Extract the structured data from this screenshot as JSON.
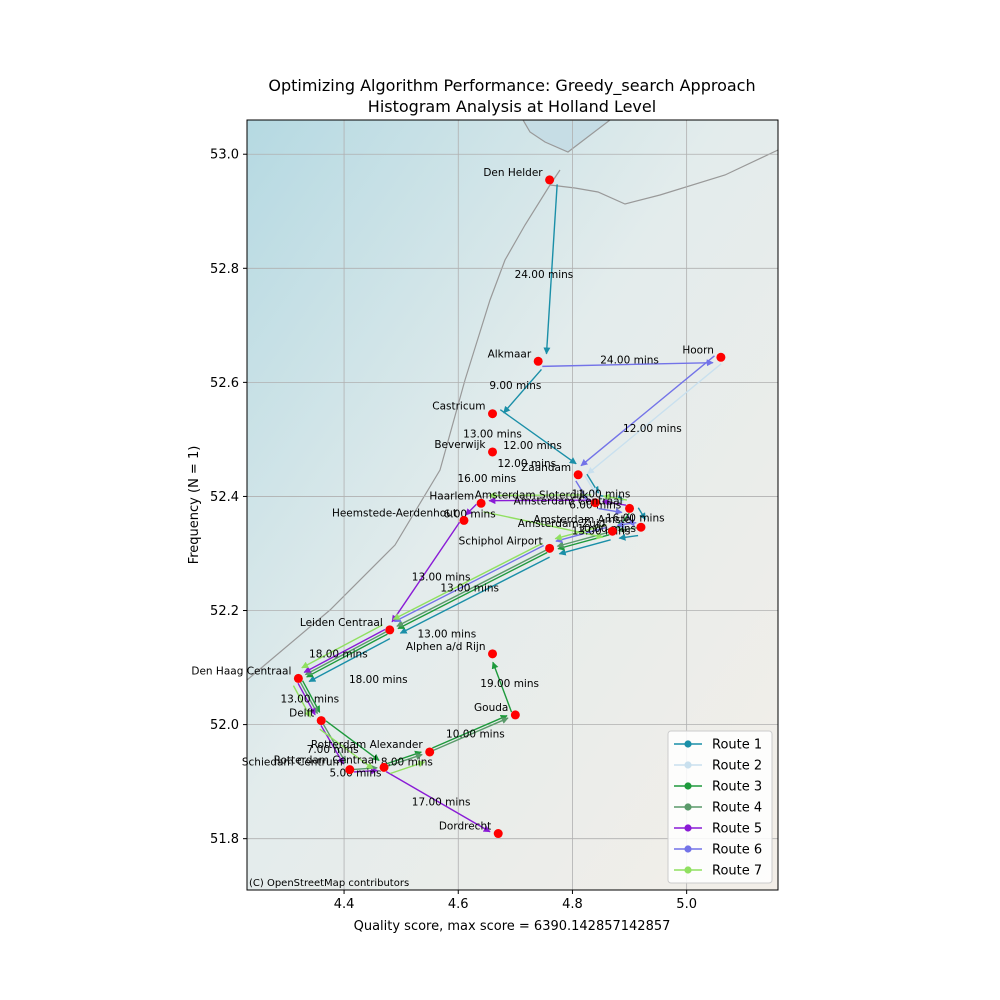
{
  "chart_data": {
    "type": "line",
    "title_line1": "Optimizing Algorithm Performance: Greedy_search Approach",
    "title_line2": "Histogram Analysis at Holland Level",
    "xlabel": "Quality score, max score = 6390.142857142857",
    "ylabel": "Frequency (N = 1)",
    "xlim": [
      4.23,
      5.16
    ],
    "ylim": [
      51.71,
      53.06
    ],
    "xticks": [
      "4.4",
      "4.6",
      "4.8",
      "5.0"
    ],
    "xtick_values": [
      4.4,
      4.6,
      4.8,
      5.0
    ],
    "yticks": [
      "51.8",
      "52.0",
      "52.2",
      "52.4",
      "52.6",
      "52.8",
      "53.0"
    ],
    "ytick_values": [
      51.8,
      52.0,
      52.2,
      52.4,
      52.6,
      52.8,
      53.0
    ],
    "grid": true,
    "legend_position": "lower-right",
    "attribution": "(C) OpenStreetMap contributors",
    "stations": [
      {
        "name": "Den Helder",
        "x": 4.76,
        "y": 52.955
      },
      {
        "name": "Alkmaar",
        "x": 4.74,
        "y": 52.637
      },
      {
        "name": "Hoorn",
        "x": 5.06,
        "y": 52.644
      },
      {
        "name": "Castricum",
        "x": 4.66,
        "y": 52.545
      },
      {
        "name": "Beverwijk",
        "x": 4.66,
        "y": 52.478
      },
      {
        "name": "Zaandam",
        "x": 4.81,
        "y": 52.438
      },
      {
        "name": "Haarlem",
        "x": 4.64,
        "y": 52.388
      },
      {
        "name": "Amsterdam Sloterdijk",
        "x": 4.84,
        "y": 52.389
      },
      {
        "name": "Amsterdam Centraal",
        "x": 4.9,
        "y": 52.379
      },
      {
        "name": "Amsterdam Zuid",
        "x": 4.87,
        "y": 52.339
      },
      {
        "name": "Amsterdam Amstel",
        "x": 4.92,
        "y": 52.346
      },
      {
        "name": "Heemstede-Aerdenhout",
        "x": 4.61,
        "y": 52.358
      },
      {
        "name": "Schiphol Airport",
        "x": 4.76,
        "y": 52.309
      },
      {
        "name": "Leiden Centraal",
        "x": 4.48,
        "y": 52.166
      },
      {
        "name": "Alphen a/d Rijn",
        "x": 4.66,
        "y": 52.124
      },
      {
        "name": "Den Haag Centraal",
        "x": 4.32,
        "y": 52.081
      },
      {
        "name": "Gouda",
        "x": 4.7,
        "y": 52.017
      },
      {
        "name": "Delft",
        "x": 4.36,
        "y": 52.007
      },
      {
        "name": "Rotterdam Alexander",
        "x": 4.55,
        "y": 51.952
      },
      {
        "name": "Rotterdam Centraal",
        "x": 4.47,
        "y": 51.925
      },
      {
        "name": "Schiedam Centrum",
        "x": 4.41,
        "y": 51.921
      },
      {
        "name": "Dordrecht",
        "x": 4.67,
        "y": 51.809
      }
    ],
    "duration_labels": [
      {
        "text": "24.00 mins",
        "x": 4.75,
        "y": 52.79
      },
      {
        "text": "24.00 mins",
        "x": 4.9,
        "y": 52.64
      },
      {
        "text": "9.00 mins",
        "x": 4.7,
        "y": 52.595
      },
      {
        "text": "12.00 mins",
        "x": 4.94,
        "y": 52.52
      },
      {
        "text": "13.00 mins",
        "x": 4.66,
        "y": 52.51
      },
      {
        "text": "12.00 mins",
        "x": 4.73,
        "y": 52.49
      },
      {
        "text": "12.00 mins",
        "x": 4.72,
        "y": 52.459
      },
      {
        "text": "16.00 mins",
        "x": 4.65,
        "y": 52.432
      },
      {
        "text": "11.00 mins",
        "x": 4.85,
        "y": 52.405
      },
      {
        "text": "6.00 mins",
        "x": 4.84,
        "y": 52.386
      },
      {
        "text": "6.00 mins",
        "x": 4.62,
        "y": 52.37
      },
      {
        "text": "16.00 mins",
        "x": 4.91,
        "y": 52.363
      },
      {
        "text": "10.00 mins",
        "x": 4.86,
        "y": 52.345
      },
      {
        "text": "13.00 mins",
        "x": 4.85,
        "y": 52.34
      },
      {
        "text": "13.00 mins",
        "x": 4.57,
        "y": 52.26
      },
      {
        "text": "13.00 mins",
        "x": 4.62,
        "y": 52.24
      },
      {
        "text": "13.00 mins",
        "x": 4.58,
        "y": 52.16
      },
      {
        "text": "18.00 mins",
        "x": 4.39,
        "y": 52.125
      },
      {
        "text": "18.00 mins",
        "x": 4.46,
        "y": 52.08
      },
      {
        "text": "19.00 mins",
        "x": 4.69,
        "y": 52.073
      },
      {
        "text": "13.00 mins",
        "x": 4.34,
        "y": 52.046
      },
      {
        "text": "10.00 mins",
        "x": 4.63,
        "y": 51.984
      },
      {
        "text": "7.00 mins",
        "x": 4.38,
        "y": 51.957
      },
      {
        "text": "8.00 mins",
        "x": 4.51,
        "y": 51.935
      },
      {
        "text": "5.00 mins",
        "x": 4.42,
        "y": 51.916
      },
      {
        "text": "17.00 mins",
        "x": 4.57,
        "y": 51.865
      }
    ],
    "series": [
      {
        "name": "Route 1",
        "color": "#1a8fa8",
        "stations": [
          "Den Helder",
          "Alkmaar",
          "Castricum",
          "Zaandam",
          "Amsterdam Sloterdijk",
          "Amsterdam Centraal",
          "Amsterdam Amstel",
          "Amsterdam Zuid",
          "Schiphol Airport",
          "Leiden Centraal",
          "Den Haag Centraal"
        ]
      },
      {
        "name": "Route 2",
        "color": "#c9e0ee",
        "stations": [
          "Hoorn",
          "Zaandam",
          "Amsterdam Sloterdijk",
          "Amsterdam Centraal",
          "Amsterdam Zuid"
        ]
      },
      {
        "name": "Route 3",
        "color": "#1e9a3c",
        "stations": [
          "Amsterdam Centraal",
          "Amsterdam Zuid",
          "Schiphol Airport",
          "Leiden Centraal",
          "Den Haag Centraal",
          "Delft",
          "Rotterdam Centraal",
          "Rotterdam Alexander",
          "Gouda",
          "Alphen a/d Rijn"
        ]
      },
      {
        "name": "Route 4",
        "color": "#5a9a6a",
        "stations": [
          "Amsterdam Amstel",
          "Amsterdam Zuid",
          "Schiphol Airport",
          "Leiden Centraal",
          "Den Haag Centraal",
          "Delft",
          "Schiedam Centrum",
          "Rotterdam Centraal",
          "Rotterdam Alexander",
          "Gouda"
        ]
      },
      {
        "name": "Route 5",
        "color": "#8a1bd6",
        "stations": [
          "Amsterdam Centraal",
          "Amsterdam Sloterdijk",
          "Haarlem",
          "Heemstede-Aerdenhout",
          "Leiden Centraal",
          "Den Haag Centraal",
          "Delft",
          "Schiedam Centrum",
          "Rotterdam Centraal",
          "Dordrecht"
        ]
      },
      {
        "name": "Route 6",
        "color": "#7373e8",
        "stations": [
          "Alkmaar",
          "Hoorn",
          "Zaandam",
          "Amsterdam Sloterdijk",
          "Amsterdam Centraal",
          "Amsterdam Amstel",
          "Amsterdam Zuid",
          "Schiphol Airport",
          "Leiden Centraal"
        ]
      },
      {
        "name": "Route 7",
        "color": "#90e060",
        "stations": [
          "Amsterdam Centraal",
          "Amsterdam Sloterdijk",
          "Haarlem",
          "Amsterdam Zuid",
          "Schiphol Airport",
          "Leiden Centraal",
          "Den Haag Centraal",
          "Delft",
          "Rotterdam Centraal",
          "Rotterdam Alexander"
        ]
      }
    ]
  }
}
